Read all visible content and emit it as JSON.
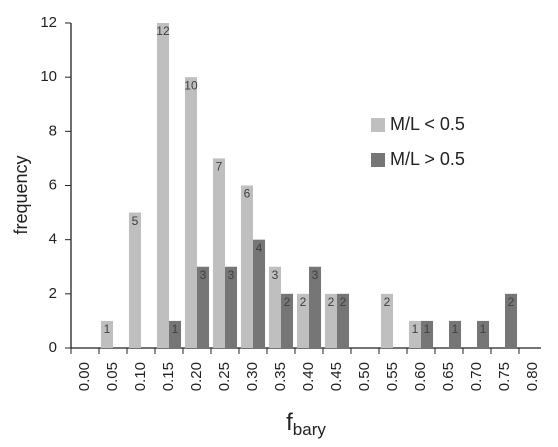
{
  "chart_data": {
    "type": "bar",
    "xlabel": {
      "main": "f",
      "sub": "bary"
    },
    "ylabel": "frequency",
    "categories": [
      "0.00",
      "0.05",
      "0.10",
      "0.15",
      "0.20",
      "0.25",
      "0.30",
      "0.35",
      "0.40",
      "0.45",
      "0.50",
      "0.55",
      "0.60",
      "0.65",
      "0.70",
      "0.75",
      "0.80"
    ],
    "series": [
      {
        "name": "M/L < 0.5",
        "color": "#bfbfbf",
        "values": [
          null,
          1,
          5,
          12,
          10,
          7,
          6,
          3,
          2,
          2,
          null,
          2,
          1,
          null,
          null,
          null,
          null
        ]
      },
      {
        "name": "M/L > 0.5",
        "color": "#767676",
        "values": [
          null,
          null,
          null,
          1,
          3,
          3,
          4,
          2,
          3,
          2,
          null,
          null,
          1,
          1,
          1,
          2,
          null
        ]
      }
    ],
    "ylim": [
      0,
      12
    ],
    "yticks": [
      0,
      2,
      4,
      6,
      8,
      10,
      12
    ],
    "grid": false,
    "legend": "right"
  }
}
